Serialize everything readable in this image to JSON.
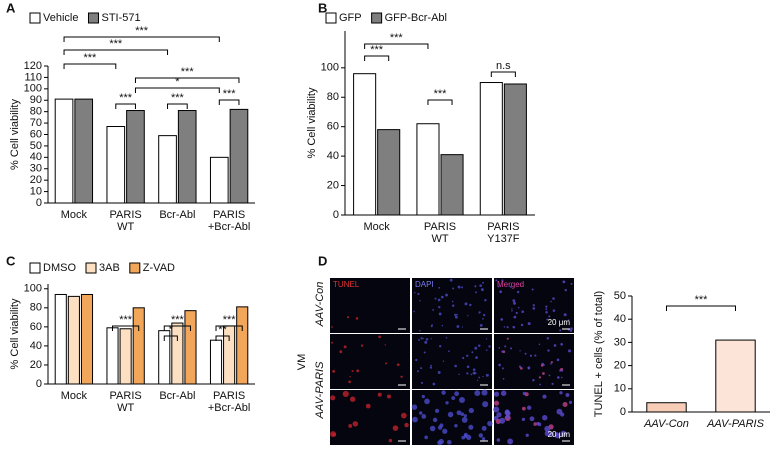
{
  "chart_data": [
    {
      "type": "bar",
      "panel_label": "A",
      "y_label": "% Cell viability",
      "categories": [
        [
          "Mock"
        ],
        [
          "PARIS",
          "WT"
        ],
        [
          "Bcr-Abl"
        ],
        [
          "PARIS",
          "+Bcr-Abl"
        ]
      ],
      "series": [
        {
          "name": "Vehicle",
          "color": "#ffffff",
          "values": [
            91,
            67,
            59,
            40
          ]
        },
        {
          "name": "STI-571",
          "color": "#7f7f7f",
          "values": [
            91,
            81,
            81,
            82
          ]
        }
      ],
      "ylim": [
        0,
        120
      ],
      "yticks": [
        0,
        10,
        20,
        30,
        40,
        50,
        60,
        70,
        80,
        90,
        100,
        110,
        120
      ],
      "annotations": [
        "***",
        "***",
        "***",
        "***",
        "*",
        "***",
        "***",
        "***"
      ]
    },
    {
      "type": "bar",
      "panel_label": "B",
      "y_label": "% Cell viability",
      "categories": [
        [
          "Mock"
        ],
        [
          "PARIS",
          "WT"
        ],
        [
          "PARIS",
          "Y137F"
        ]
      ],
      "series": [
        {
          "name": "GFP",
          "color": "#ffffff",
          "values": [
            96,
            62,
            90
          ]
        },
        {
          "name": "GFP-Bcr-Abl",
          "color": "#7f7f7f",
          "values": [
            58,
            41,
            89
          ]
        }
      ],
      "ylim": [
        0,
        125
      ],
      "yticks": [
        0,
        20,
        40,
        60,
        80,
        100
      ],
      "annotations": [
        "***",
        "***",
        "***",
        "n.s"
      ]
    },
    {
      "type": "bar",
      "panel_label": "C",
      "y_label": "% Cell viability",
      "categories": [
        [
          "Mock"
        ],
        [
          "PARIS",
          "WT"
        ],
        [
          "Bcr-Abl"
        ],
        [
          "PARIS",
          "+Bcr-Abl"
        ]
      ],
      "series": [
        {
          "name": "DMSO",
          "color": "#ffffff",
          "values": [
            94,
            59,
            56,
            46
          ]
        },
        {
          "name": "3AB",
          "color": "#fde0c2",
          "values": [
            92,
            58,
            64,
            61
          ]
        },
        {
          "name": "Z-VAD",
          "color": "#f2a65a",
          "values": [
            94,
            80,
            77,
            81
          ]
        }
      ],
      "ylim": [
        0,
        105
      ],
      "yticks": [
        0,
        20,
        40,
        60,
        80,
        100
      ],
      "annotations": [
        "***",
        "*",
        "***",
        "**",
        "***"
      ]
    },
    {
      "type": "bar",
      "y_label": "TUNEL + cells (% of total)",
      "categories": [
        [
          "AAV-Con"
        ],
        [
          "AAV-PARIS"
        ]
      ],
      "values": [
        4,
        31
      ],
      "colors": [
        "#f8cdb8",
        "#fde4d8"
      ],
      "ylim": [
        0,
        50
      ],
      "yticks": [
        0,
        10,
        20,
        30,
        40,
        50
      ],
      "annotations": [
        "***"
      ]
    }
  ],
  "figure_d": {
    "panel_label": "D",
    "columns": [
      "TUNEL",
      "DAPI",
      "Merged"
    ],
    "rows": [
      "AAV-Con",
      "AAV-PARIS"
    ],
    "region": "VM",
    "scale_bar": "20 μm"
  }
}
